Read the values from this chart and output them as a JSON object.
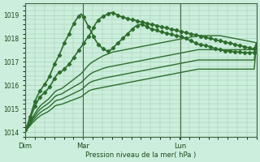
{
  "background_color": "#cceedd",
  "grid_color": "#99ccaa",
  "line_color": "#2d6e2d",
  "text_color": "#1a4a1a",
  "xlabel": "Pression niveau de la mer( hPa )",
  "ylim": [
    1013.8,
    1019.5
  ],
  "yticks": [
    1014,
    1015,
    1016,
    1017,
    1018,
    1019
  ],
  "xtick_labels": [
    "Dim",
    "Mar",
    "Lun"
  ],
  "xtick_positions": [
    0,
    0.25,
    0.67
  ],
  "series": [
    {
      "name": "s1_marked",
      "y": [
        1014.1,
        1014.35,
        1014.65,
        1015.0,
        1015.3,
        1015.55,
        1015.75,
        1015.9,
        1016.05,
        1016.2,
        1016.4,
        1016.65,
        1016.9,
        1017.1,
        1017.3,
        1017.55,
        1017.8,
        1018.0,
        1018.2,
        1018.45,
        1018.65,
        1018.82,
        1018.95,
        1019.05,
        1018.9,
        1018.7,
        1018.5,
        1018.3,
        1018.1,
        1017.9,
        1017.75,
        1017.65,
        1017.55,
        1017.5,
        1017.45,
        1017.5,
        1017.6,
        1017.7,
        1017.8,
        1017.9,
        1018.0,
        1018.1,
        1018.2,
        1018.3,
        1018.4,
        1018.5,
        1018.55,
        1018.6,
        1018.6,
        1018.55,
        1018.5,
        1018.45,
        1018.4,
        1018.38,
        1018.35,
        1018.3,
        1018.28,
        1018.25,
        1018.22,
        1018.2,
        1018.18,
        1018.15,
        1018.12,
        1018.1,
        1018.08,
        1018.05,
        1018.0,
        1017.95,
        1017.9,
        1017.85,
        1017.8,
        1017.75,
        1017.75,
        1017.72,
        1017.7,
        1017.68,
        1017.65,
        1017.6,
        1017.58,
        1017.55,
        1017.52,
        1017.5,
        1017.48,
        1017.46,
        1017.45,
        1017.44,
        1017.43,
        1017.42,
        1017.42,
        1017.4,
        1017.4,
        1017.4,
        1017.4,
        1017.4,
        1017.4,
        1017.8
      ],
      "marker": true,
      "lw": 1.2
    },
    {
      "name": "s2_marked",
      "y": [
        1014.1,
        1014.3,
        1014.55,
        1014.85,
        1015.1,
        1015.3,
        1015.5,
        1015.6,
        1015.7,
        1015.8,
        1015.95,
        1016.1,
        1016.3,
        1016.45,
        1016.55,
        1016.6,
        1016.7,
        1016.8,
        1016.9,
        1017.05,
        1017.2,
        1017.35,
        1017.5,
        1017.65,
        1017.8,
        1017.95,
        1018.1,
        1018.25,
        1018.45,
        1018.65,
        1018.78,
        1018.88,
        1018.95,
        1019.0,
        1019.05,
        1019.1,
        1019.1,
        1019.05,
        1019.0,
        1018.95,
        1018.9,
        1018.88,
        1018.85,
        1018.82,
        1018.8,
        1018.78,
        1018.75,
        1018.72,
        1018.7,
        1018.68,
        1018.65,
        1018.62,
        1018.6,
        1018.58,
        1018.55,
        1018.52,
        1018.5,
        1018.48,
        1018.45,
        1018.42,
        1018.4,
        1018.38,
        1018.35,
        1018.32,
        1018.3,
        1018.28,
        1018.25,
        1018.22,
        1018.2,
        1018.18,
        1018.15,
        1018.12,
        1018.1,
        1018.08,
        1018.05,
        1018.02,
        1018.0,
        1017.98,
        1017.95,
        1017.92,
        1017.9,
        1017.88,
        1017.85,
        1017.82,
        1017.8,
        1017.78,
        1017.75,
        1017.72,
        1017.7,
        1017.68,
        1017.65,
        1017.62,
        1017.6,
        1017.58,
        1017.55,
        1017.8
      ],
      "marker": true,
      "lw": 1.2
    },
    {
      "name": "s3_plain",
      "y": [
        1014.1,
        1014.22,
        1014.42,
        1014.62,
        1014.8,
        1014.96,
        1015.1,
        1015.2,
        1015.28,
        1015.36,
        1015.46,
        1015.58,
        1015.7,
        1015.78,
        1015.82,
        1015.86,
        1015.94,
        1016.02,
        1016.1,
        1016.18,
        1016.26,
        1016.34,
        1016.42,
        1016.5,
        1016.62,
        1016.74,
        1016.86,
        1016.95,
        1017.02,
        1017.08,
        1017.14,
        1017.2,
        1017.26,
        1017.3,
        1017.34,
        1017.38,
        1017.42,
        1017.44,
        1017.46,
        1017.48,
        1017.5,
        1017.52,
        1017.54,
        1017.56,
        1017.58,
        1017.6,
        1017.62,
        1017.64,
        1017.66,
        1017.68,
        1017.7,
        1017.72,
        1017.74,
        1017.76,
        1017.78,
        1017.8,
        1017.82,
        1017.84,
        1017.86,
        1017.88,
        1017.9,
        1017.92,
        1017.94,
        1017.96,
        1017.98,
        1018.0,
        1018.02,
        1018.04,
        1018.06,
        1018.08,
        1018.1,
        1018.12,
        1018.12,
        1018.12,
        1018.12,
        1018.12,
        1018.12,
        1018.12,
        1018.12,
        1018.12,
        1018.12,
        1018.1,
        1018.08,
        1018.06,
        1018.04,
        1018.02,
        1018.0,
        1017.98,
        1017.96,
        1017.94,
        1017.92,
        1017.9,
        1017.88,
        1017.86,
        1017.84,
        1017.8
      ],
      "marker": false,
      "lw": 1.0
    },
    {
      "name": "s4_plain",
      "y": [
        1014.1,
        1014.2,
        1014.38,
        1014.55,
        1014.7,
        1014.84,
        1014.96,
        1015.05,
        1015.12,
        1015.19,
        1015.28,
        1015.38,
        1015.5,
        1015.57,
        1015.6,
        1015.63,
        1015.7,
        1015.76,
        1015.82,
        1015.88,
        1015.94,
        1016.0,
        1016.06,
        1016.12,
        1016.22,
        1016.32,
        1016.42,
        1016.5,
        1016.56,
        1016.6,
        1016.64,
        1016.68,
        1016.72,
        1016.75,
        1016.78,
        1016.8,
        1016.82,
        1016.84,
        1016.86,
        1016.88,
        1016.9,
        1016.92,
        1016.94,
        1016.96,
        1016.98,
        1017.0,
        1017.02,
        1017.04,
        1017.06,
        1017.08,
        1017.1,
        1017.12,
        1017.14,
        1017.16,
        1017.18,
        1017.2,
        1017.22,
        1017.24,
        1017.26,
        1017.28,
        1017.3,
        1017.32,
        1017.34,
        1017.36,
        1017.38,
        1017.4,
        1017.42,
        1017.44,
        1017.46,
        1017.48,
        1017.5,
        1017.52,
        1017.52,
        1017.52,
        1017.52,
        1017.52,
        1017.52,
        1017.52,
        1017.52,
        1017.52,
        1017.52,
        1017.52,
        1017.52,
        1017.52,
        1017.52,
        1017.52,
        1017.52,
        1017.52,
        1017.52,
        1017.52,
        1017.52,
        1017.52,
        1017.52,
        1017.52,
        1017.52,
        1017.8
      ],
      "marker": false,
      "lw": 1.0
    },
    {
      "name": "s5_plain",
      "y": [
        1014.1,
        1014.18,
        1014.33,
        1014.48,
        1014.6,
        1014.72,
        1014.82,
        1014.9,
        1014.96,
        1015.02,
        1015.1,
        1015.19,
        1015.3,
        1015.36,
        1015.38,
        1015.41,
        1015.46,
        1015.51,
        1015.56,
        1015.61,
        1015.66,
        1015.71,
        1015.76,
        1015.81,
        1015.9,
        1015.99,
        1016.08,
        1016.14,
        1016.18,
        1016.21,
        1016.24,
        1016.27,
        1016.3,
        1016.32,
        1016.34,
        1016.36,
        1016.38,
        1016.4,
        1016.42,
        1016.44,
        1016.46,
        1016.48,
        1016.5,
        1016.52,
        1016.54,
        1016.56,
        1016.58,
        1016.6,
        1016.62,
        1016.64,
        1016.66,
        1016.68,
        1016.7,
        1016.72,
        1016.74,
        1016.76,
        1016.78,
        1016.8,
        1016.82,
        1016.84,
        1016.86,
        1016.88,
        1016.9,
        1016.92,
        1016.94,
        1016.96,
        1016.98,
        1017.0,
        1017.02,
        1017.04,
        1017.06,
        1017.08,
        1017.08,
        1017.08,
        1017.08,
        1017.08,
        1017.08,
        1017.08,
        1017.08,
        1017.08,
        1017.08,
        1017.08,
        1017.08,
        1017.08,
        1017.08,
        1017.08,
        1017.08,
        1017.08,
        1017.08,
        1017.08,
        1017.08,
        1017.08,
        1017.08,
        1017.08,
        1017.08,
        1017.8
      ],
      "marker": false,
      "lw": 1.0
    },
    {
      "name": "s6_plain",
      "y": [
        1014.1,
        1014.15,
        1014.27,
        1014.4,
        1014.5,
        1014.6,
        1014.68,
        1014.75,
        1014.8,
        1014.85,
        1014.92,
        1015.0,
        1015.1,
        1015.15,
        1015.17,
        1015.19,
        1015.23,
        1015.27,
        1015.31,
        1015.35,
        1015.39,
        1015.43,
        1015.47,
        1015.51,
        1015.59,
        1015.67,
        1015.75,
        1015.8,
        1015.83,
        1015.85,
        1015.87,
        1015.89,
        1015.91,
        1015.93,
        1015.95,
        1015.97,
        1015.99,
        1016.01,
        1016.03,
        1016.05,
        1016.07,
        1016.09,
        1016.11,
        1016.13,
        1016.15,
        1016.17,
        1016.19,
        1016.21,
        1016.23,
        1016.25,
        1016.27,
        1016.29,
        1016.31,
        1016.33,
        1016.35,
        1016.37,
        1016.39,
        1016.41,
        1016.43,
        1016.45,
        1016.47,
        1016.49,
        1016.51,
        1016.53,
        1016.55,
        1016.57,
        1016.59,
        1016.61,
        1016.63,
        1016.65,
        1016.67,
        1016.69,
        1016.69,
        1016.69,
        1016.69,
        1016.69,
        1016.69,
        1016.69,
        1016.69,
        1016.69,
        1016.69,
        1016.69,
        1016.69,
        1016.69,
        1016.69,
        1016.69,
        1016.69,
        1016.69,
        1016.69,
        1016.69,
        1016.69,
        1016.69,
        1016.69,
        1016.69,
        1016.69,
        1017.8
      ],
      "marker": false,
      "lw": 1.0
    }
  ],
  "figsize": [
    3.2,
    2.0
  ],
  "dpi": 100
}
